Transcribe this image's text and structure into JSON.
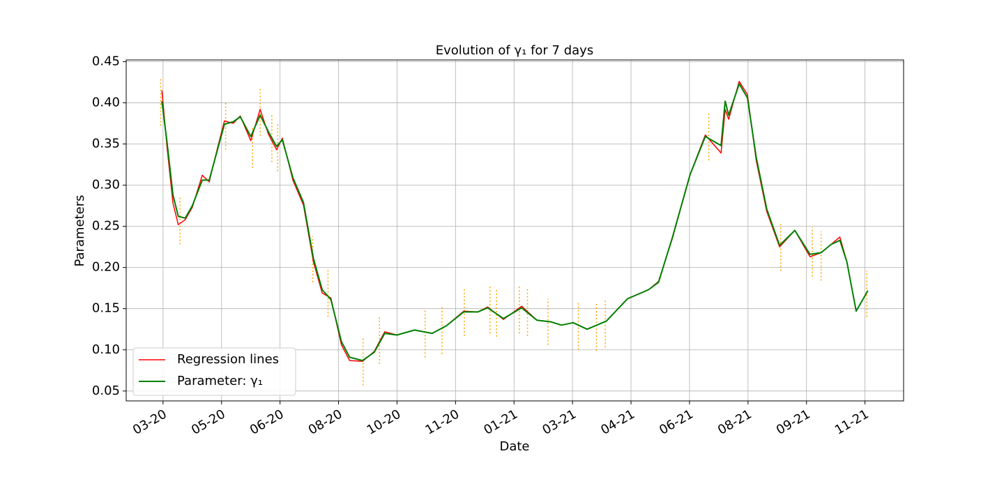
{
  "chart_data": {
    "type": "line",
    "title": "Evolution of γ₁ for 7 days",
    "xlabel": "Date",
    "ylabel": "Parameters",
    "xlim": [
      -0.63,
      12.66
    ],
    "ylim": [
      0.038,
      0.452
    ],
    "xticks": [
      {
        "value": 0,
        "label": "03-20"
      },
      {
        "value": 1,
        "label": "05-20"
      },
      {
        "value": 2,
        "label": "06-20"
      },
      {
        "value": 3,
        "label": "08-20"
      },
      {
        "value": 4,
        "label": "10-20"
      },
      {
        "value": 5,
        "label": "11-20"
      },
      {
        "value": 6,
        "label": "01-21"
      },
      {
        "value": 7,
        "label": "03-21"
      },
      {
        "value": 8,
        "label": "04-21"
      },
      {
        "value": 9,
        "label": "06-21"
      },
      {
        "value": 10,
        "label": "08-21"
      },
      {
        "value": 11,
        "label": "09-21"
      },
      {
        "value": 12,
        "label": "11-21"
      }
    ],
    "yticks": [
      {
        "value": 0.05,
        "label": "0.05"
      },
      {
        "value": 0.1,
        "label": "0.10"
      },
      {
        "value": 0.15,
        "label": "0.15"
      },
      {
        "value": 0.2,
        "label": "0.20"
      },
      {
        "value": 0.25,
        "label": "0.25"
      },
      {
        "value": 0.3,
        "label": "0.30"
      },
      {
        "value": 0.35,
        "label": "0.35"
      },
      {
        "value": 0.4,
        "label": "0.40"
      },
      {
        "value": 0.45,
        "label": "0.45"
      }
    ],
    "grid": true,
    "legend": "lower left",
    "series": [
      {
        "name": "Regression lines",
        "color": "#ff0000",
        "width": 1.5,
        "x": [
          -0.02,
          0.07,
          0.17,
          0.26,
          0.38,
          0.5,
          0.67,
          0.79,
          0.93,
          1.05,
          1.2,
          1.32,
          1.5,
          1.66,
          1.8,
          1.94,
          2.04,
          2.22,
          2.4,
          2.57,
          2.72,
          2.87,
          3.05,
          3.19,
          3.41,
          3.61,
          3.79,
          4.0,
          4.3,
          4.6,
          4.84,
          5.14,
          5.38,
          5.55,
          5.82,
          6.13,
          6.39,
          6.63,
          6.81,
          7.01,
          7.25,
          7.58,
          7.94,
          8.3,
          8.47,
          8.71,
          9.01,
          9.27,
          9.54,
          9.61,
          9.67,
          9.85,
          9.99,
          10.14,
          10.32,
          10.54,
          10.8,
          11.06,
          11.25,
          11.42,
          11.57,
          11.69
        ],
        "values": [
          0.415,
          0.345,
          0.278,
          0.252,
          0.258,
          0.273,
          0.312,
          0.304,
          0.345,
          0.378,
          0.375,
          0.384,
          0.354,
          0.392,
          0.362,
          0.343,
          0.357,
          0.306,
          0.276,
          0.207,
          0.169,
          0.163,
          0.106,
          0.087,
          0.086,
          0.098,
          0.122,
          0.118,
          0.124,
          0.12,
          0.129,
          0.147,
          0.146,
          0.152,
          0.137,
          0.153,
          0.136,
          0.134,
          0.13,
          0.133,
          0.125,
          0.135,
          0.162,
          0.173,
          0.183,
          0.236,
          0.313,
          0.361,
          0.339,
          0.392,
          0.38,
          0.426,
          0.41,
          0.33,
          0.268,
          0.225,
          0.245,
          0.213,
          0.218,
          0.228,
          0.237,
          0.207
        ]
      },
      {
        "name": "Parameter: γ₁",
        "color": "#008000",
        "width": 2,
        "x": [
          -0.02,
          0.07,
          0.17,
          0.26,
          0.38,
          0.5,
          0.67,
          0.79,
          0.93,
          1.05,
          1.2,
          1.32,
          1.5,
          1.66,
          1.8,
          1.94,
          2.04,
          2.22,
          2.4,
          2.57,
          2.72,
          2.87,
          3.05,
          3.19,
          3.41,
          3.61,
          3.79,
          4.0,
          4.3,
          4.6,
          4.84,
          5.14,
          5.38,
          5.55,
          5.82,
          6.13,
          6.39,
          6.63,
          6.81,
          7.01,
          7.25,
          7.58,
          7.94,
          8.3,
          8.47,
          8.71,
          9.01,
          9.27,
          9.54,
          9.61,
          9.67,
          9.85,
          9.99,
          10.14,
          10.32,
          10.54,
          10.8,
          11.06,
          11.25,
          11.42,
          11.57,
          11.69,
          11.85,
          12.05
        ],
        "values": [
          0.402,
          0.351,
          0.288,
          0.262,
          0.26,
          0.275,
          0.306,
          0.306,
          0.343,
          0.374,
          0.377,
          0.383,
          0.359,
          0.385,
          0.365,
          0.347,
          0.355,
          0.309,
          0.279,
          0.211,
          0.173,
          0.161,
          0.11,
          0.091,
          0.087,
          0.097,
          0.12,
          0.118,
          0.124,
          0.12,
          0.129,
          0.146,
          0.146,
          0.151,
          0.138,
          0.151,
          0.136,
          0.134,
          0.13,
          0.133,
          0.125,
          0.135,
          0.162,
          0.173,
          0.182,
          0.237,
          0.313,
          0.359,
          0.348,
          0.402,
          0.385,
          0.423,
          0.406,
          0.334,
          0.271,
          0.227,
          0.245,
          0.216,
          0.218,
          0.228,
          0.233,
          0.207,
          0.147,
          0.172
        ]
      }
    ],
    "vlines": {
      "color": "#ffa500",
      "segments": [
        {
          "x": -0.04,
          "ymin": 0.372,
          "ymax": 0.431
        },
        {
          "x": 0.29,
          "ymin": 0.228,
          "ymax": 0.286
        },
        {
          "x": 1.07,
          "ymin": 0.343,
          "ymax": 0.402
        },
        {
          "x": 1.53,
          "ymin": 0.321,
          "ymax": 0.372
        },
        {
          "x": 1.66,
          "ymin": 0.36,
          "ymax": 0.419
        },
        {
          "x": 1.86,
          "ymin": 0.328,
          "ymax": 0.385
        },
        {
          "x": 1.96,
          "ymin": 0.317,
          "ymax": 0.374
        },
        {
          "x": 2.56,
          "ymin": 0.182,
          "ymax": 0.238
        },
        {
          "x": 2.82,
          "ymin": 0.14,
          "ymax": 0.199
        },
        {
          "x": 3.42,
          "ymin": 0.057,
          "ymax": 0.114
        },
        {
          "x": 3.7,
          "ymin": 0.083,
          "ymax": 0.142
        },
        {
          "x": 4.48,
          "ymin": 0.091,
          "ymax": 0.148
        },
        {
          "x": 4.77,
          "ymin": 0.095,
          "ymax": 0.154
        },
        {
          "x": 5.15,
          "ymin": 0.117,
          "ymax": 0.176
        },
        {
          "x": 5.59,
          "ymin": 0.12,
          "ymax": 0.179
        },
        {
          "x": 5.7,
          "ymin": 0.116,
          "ymax": 0.175
        },
        {
          "x": 6.09,
          "ymin": 0.12,
          "ymax": 0.179
        },
        {
          "x": 6.23,
          "ymin": 0.117,
          "ymax": 0.176
        },
        {
          "x": 6.58,
          "ymin": 0.106,
          "ymax": 0.162
        },
        {
          "x": 7.1,
          "ymin": 0.1,
          "ymax": 0.158
        },
        {
          "x": 7.41,
          "ymin": 0.099,
          "ymax": 0.158
        },
        {
          "x": 7.56,
          "ymin": 0.103,
          "ymax": 0.162
        },
        {
          "x": 9.33,
          "ymin": 0.33,
          "ymax": 0.389
        },
        {
          "x": 10.56,
          "ymin": 0.196,
          "ymax": 0.255
        },
        {
          "x": 11.1,
          "ymin": 0.189,
          "ymax": 0.249
        },
        {
          "x": 11.25,
          "ymin": 0.184,
          "ymax": 0.244
        },
        {
          "x": 12.03,
          "ymin": 0.14,
          "ymax": 0.196
        }
      ]
    }
  }
}
